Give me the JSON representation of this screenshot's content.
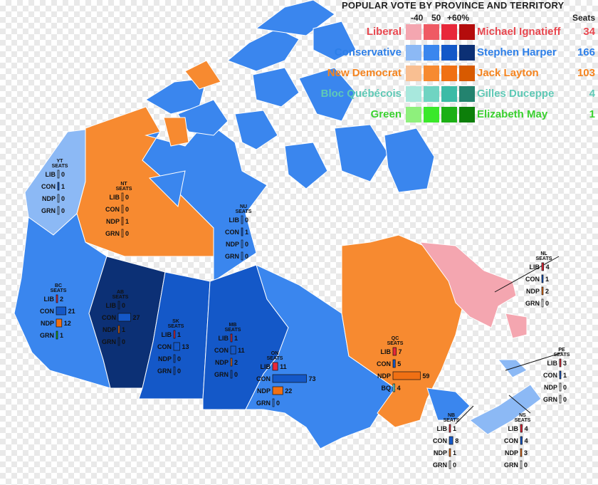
{
  "legend": {
    "title": "POPULAR VOTE BY PROVINCE AND TERRITORY",
    "scale": [
      "-40",
      "50",
      "+60%"
    ],
    "seats_header": "Seats",
    "parties": [
      {
        "name": "Liberal",
        "leader": "Michael Ignatieff",
        "seats": "34",
        "color": "#e8474f",
        "shades": [
          "#f4a6b0",
          "#ef5a64",
          "#e8283a",
          "#b40c0c"
        ]
      },
      {
        "name": "Conservative",
        "leader": "Stephen Harper",
        "seats": "166",
        "color": "#2d7fe8",
        "shades": [
          "#8cb9f5",
          "#3a86ee",
          "#1458c8",
          "#0c3075"
        ]
      },
      {
        "name": "New Democrat",
        "leader": "Jack Layton",
        "seats": "103",
        "color": "#f5841f",
        "shades": [
          "#f9bf92",
          "#f78a30",
          "#f07014",
          "#d85a00"
        ]
      },
      {
        "name": "Bloc Québécois",
        "leader": "Gilles Duceppe",
        "seats": "4",
        "color": "#5fc9b6",
        "shades": [
          "#a8e8dd",
          "#6fd4c2",
          "#3cbba6",
          "#23836f"
        ]
      },
      {
        "name": "Green",
        "leader": "Elizabeth May",
        "seats": "1",
        "color": "#3ad12f",
        "shades": [
          "#8ef07c",
          "#3ae82a",
          "#1cb015",
          "#0d7f0a"
        ]
      }
    ]
  },
  "regions": [
    {
      "key": "YT",
      "name": "YT",
      "fill_party": "Conservative",
      "fill": "#8cb9f5",
      "seats": [
        {
          "p": "LIB",
          "v": 0
        },
        {
          "p": "CON",
          "v": 1
        },
        {
          "p": "NDP",
          "v": 0
        },
        {
          "p": "GRN",
          "v": 0
        }
      ]
    },
    {
      "key": "NT",
      "name": "NT",
      "fill_party": "New Democrat",
      "fill": "#f78a30",
      "seats": [
        {
          "p": "LIB",
          "v": 0
        },
        {
          "p": "CON",
          "v": 0
        },
        {
          "p": "NDP",
          "v": 1
        },
        {
          "p": "GRN",
          "v": 0
        }
      ]
    },
    {
      "key": "NU",
      "name": "NU",
      "fill_party": "Conservative",
      "fill": "#3a86ee",
      "seats": [
        {
          "p": "LIB",
          "v": 0
        },
        {
          "p": "CON",
          "v": 1
        },
        {
          "p": "NDP",
          "v": 0
        },
        {
          "p": "GRN",
          "v": 0
        }
      ]
    },
    {
      "key": "BC",
      "name": "BC",
      "fill_party": "Conservative",
      "fill": "#3a86ee",
      "seats": [
        {
          "p": "LIB",
          "v": 2
        },
        {
          "p": "CON",
          "v": 21
        },
        {
          "p": "NDP",
          "v": 12
        },
        {
          "p": "GRN",
          "v": 1
        }
      ]
    },
    {
      "key": "AB",
      "name": "AB",
      "fill_party": "Conservative",
      "fill": "#0c3075",
      "seats": [
        {
          "p": "LIB",
          "v": 0
        },
        {
          "p": "CON",
          "v": 27
        },
        {
          "p": "NDP",
          "v": 1
        },
        {
          "p": "GRN",
          "v": 0
        }
      ]
    },
    {
      "key": "SK",
      "name": "SK",
      "fill_party": "Conservative",
      "fill": "#1458c8",
      "seats": [
        {
          "p": "LIB",
          "v": 1
        },
        {
          "p": "CON",
          "v": 13
        },
        {
          "p": "NDP",
          "v": 0
        },
        {
          "p": "GRN",
          "v": 0
        }
      ]
    },
    {
      "key": "MB",
      "name": "MB",
      "fill_party": "Conservative",
      "fill": "#1458c8",
      "seats": [
        {
          "p": "LIB",
          "v": 1
        },
        {
          "p": "CON",
          "v": 11
        },
        {
          "p": "NDP",
          "v": 2
        },
        {
          "p": "GRN",
          "v": 0
        }
      ]
    },
    {
      "key": "ON",
      "name": "ON",
      "fill_party": "Conservative",
      "fill": "#3a86ee",
      "seats": [
        {
          "p": "LIB",
          "v": 11
        },
        {
          "p": "CON",
          "v": 73
        },
        {
          "p": "NDP",
          "v": 22
        },
        {
          "p": "GRN",
          "v": 0
        }
      ]
    },
    {
      "key": "QC",
      "name": "QC",
      "fill_party": "New Democrat",
      "fill": "#f78a30",
      "seats": [
        {
          "p": "LIB",
          "v": 7
        },
        {
          "p": "CON",
          "v": 5
        },
        {
          "p": "NDP",
          "v": 59
        },
        {
          "p": "BQ",
          "v": 4
        }
      ]
    },
    {
      "key": "NL",
      "name": "NL",
      "fill_party": "Liberal",
      "fill": "#f4a6b0",
      "seats": [
        {
          "p": "LIB",
          "v": 4
        },
        {
          "p": "CON",
          "v": 1
        },
        {
          "p": "NDP",
          "v": 2
        },
        {
          "p": "GRN",
          "v": 0
        }
      ]
    },
    {
      "key": "PE",
      "name": "PE",
      "fill_party": "Conservative",
      "fill": "#8cb9f5",
      "seats": [
        {
          "p": "LIB",
          "v": 3
        },
        {
          "p": "CON",
          "v": 1
        },
        {
          "p": "NDP",
          "v": 0
        },
        {
          "p": "GRN",
          "v": 0
        }
      ]
    },
    {
      "key": "NB",
      "name": "NB",
      "fill_party": "Conservative",
      "fill": "#3a86ee",
      "seats": [
        {
          "p": "LIB",
          "v": 1
        },
        {
          "p": "CON",
          "v": 8
        },
        {
          "p": "NDP",
          "v": 1
        },
        {
          "p": "GRN",
          "v": 0
        }
      ]
    },
    {
      "key": "NS",
      "name": "NS",
      "fill_party": "Conservative",
      "fill": "#8cb9f5",
      "seats": [
        {
          "p": "LIB",
          "v": 4
        },
        {
          "p": "CON",
          "v": 4
        },
        {
          "p": "NDP",
          "v": 3
        },
        {
          "p": "GRN",
          "v": 0
        }
      ]
    }
  ],
  "seats_word": "SEATS",
  "party_colors": {
    "LIB": "#e8283a",
    "CON": "#1458c8",
    "NDP": "#f07014",
    "BQ": "#6fd4c2",
    "GRN": "#1cb015"
  }
}
